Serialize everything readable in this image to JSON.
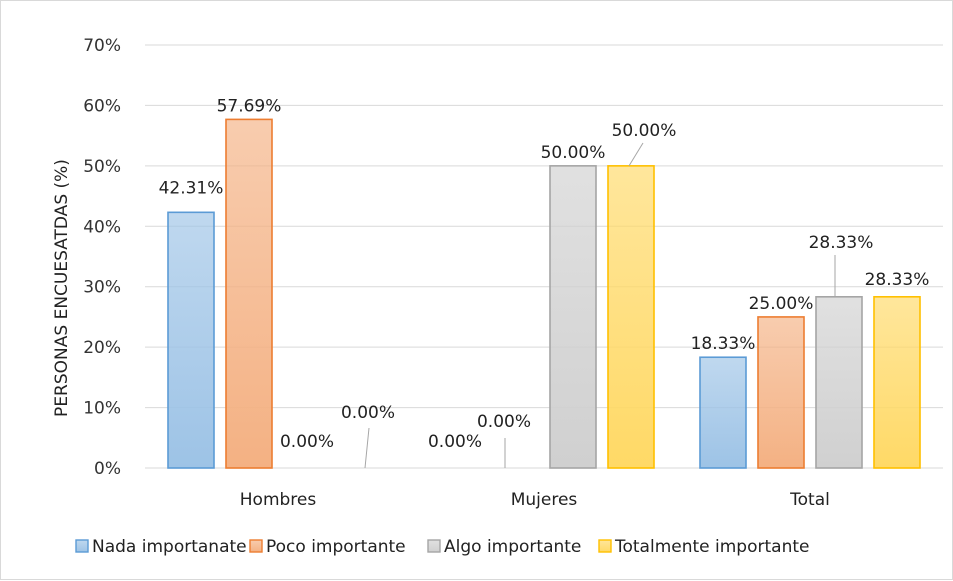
{
  "chart_data": {
    "type": "bar",
    "title": "",
    "xlabel": "",
    "ylabel": "PERSONAS ENCUESATDAS (%)",
    "ylim": [
      0,
      70
    ],
    "yticks": [
      0,
      10,
      20,
      30,
      40,
      50,
      60,
      70
    ],
    "ytick_labels": [
      "0%",
      "10%",
      "20%",
      "30%",
      "40%",
      "50%",
      "60%",
      "70%"
    ],
    "grid": true,
    "legend_position": "bottom",
    "categories": [
      "Hombres",
      "Mujeres",
      "Total"
    ],
    "series": [
      {
        "name": "Nada importanate",
        "values": [
          42.31,
          0.0,
          18.33
        ],
        "labels": [
          "42.31%",
          "0.00%",
          "18.33%"
        ],
        "color": "#9dc3e6",
        "edge": "#5b9bd5"
      },
      {
        "name": "Poco importante",
        "values": [
          57.69,
          0.0,
          25.0
        ],
        "labels": [
          "57.69%",
          "0.00%",
          "25.00%"
        ],
        "color": "#f4b183",
        "edge": "#ed7d31"
      },
      {
        "name": "Algo importante",
        "values": [
          0.0,
          50.0,
          28.33
        ],
        "labels": [
          "0.00%",
          "50.00%",
          "28.33%"
        ],
        "color": "#d0d0d0",
        "edge": "#a5a5a5"
      },
      {
        "name": "Totalmente importante",
        "values": [
          0.0,
          50.0,
          28.33
        ],
        "labels": [
          "0.00%",
          "50.00%",
          "28.33%"
        ],
        "color": "#ffd966",
        "edge": "#ffc000"
      }
    ]
  }
}
